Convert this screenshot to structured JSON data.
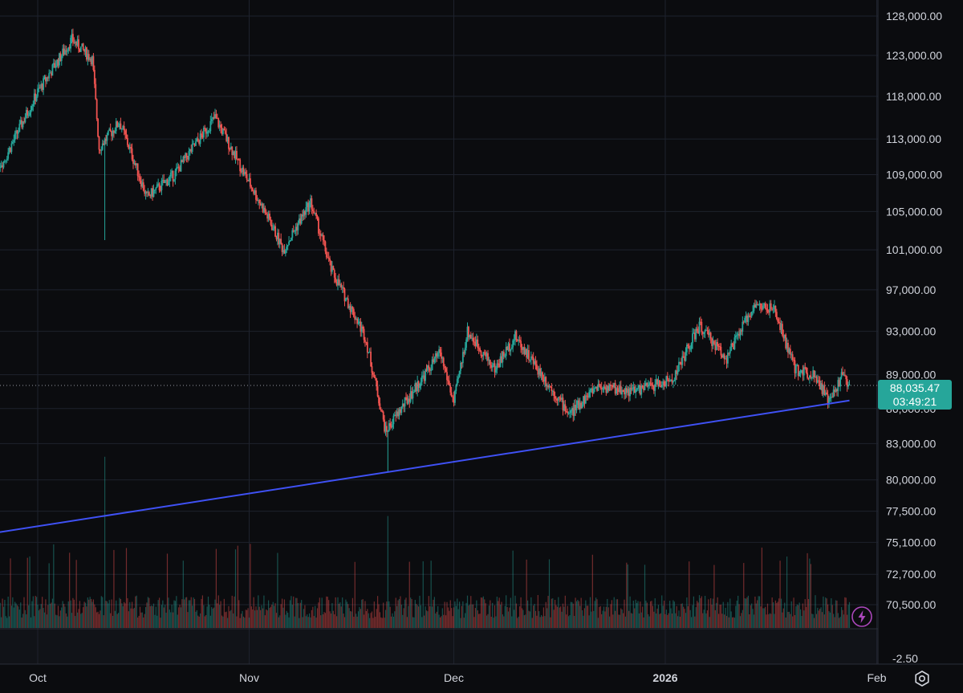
{
  "chart_data": {
    "type": "candlestick",
    "price_axis": {
      "ticks": [
        "128,000.00",
        "123,000.00",
        "118,000.00",
        "113,000.00",
        "109,000.00",
        "105,000.00",
        "101,000.00",
        "97,000.00",
        "93,000.00",
        "89,000.00",
        "86,000.00",
        "83,000.00",
        "80,000.00",
        "77,500.00",
        "75,100.00",
        "72,700.00",
        "70,500.00"
      ],
      "scale": "log"
    },
    "indicator_axis": {
      "ticks": [
        "-2.50"
      ]
    },
    "time_axis": {
      "ticks": [
        {
          "label": "Oct",
          "bold": false
        },
        {
          "label": "Nov",
          "bold": false
        },
        {
          "label": "Dec",
          "bold": false
        },
        {
          "label": "2026",
          "bold": true
        },
        {
          "label": "Feb",
          "bold": false
        }
      ]
    },
    "last_price": "88,035.47",
    "countdown": "03:49:21",
    "trendline": {
      "color": "#3f51f5",
      "points": [
        {
          "date": "2025-09-22",
          "price": 75600
        },
        {
          "date": "2025-11-21",
          "price": 80500
        },
        {
          "date": "2026-01-25",
          "price": 86000
        },
        {
          "date": "2026-01-28",
          "price": 86700
        }
      ]
    },
    "series_anchors": [
      {
        "date": "2025-09-22",
        "price": 109000
      },
      {
        "date": "2025-09-26",
        "price": 110500
      },
      {
        "date": "2025-10-01",
        "price": 118500
      },
      {
        "date": "2025-10-06",
        "price": 125000
      },
      {
        "date": "2025-10-09",
        "price": 122500
      },
      {
        "date": "2025-10-10",
        "price": 112000
      },
      {
        "date": "2025-10-13",
        "price": 115000
      },
      {
        "date": "2025-10-17",
        "price": 106500
      },
      {
        "date": "2025-10-21",
        "price": 109000
      },
      {
        "date": "2025-10-27",
        "price": 115500
      },
      {
        "date": "2025-10-31",
        "price": 109500
      },
      {
        "date": "2025-11-04",
        "price": 104000
      },
      {
        "date": "2025-11-06",
        "price": 101000
      },
      {
        "date": "2025-11-10",
        "price": 106000
      },
      {
        "date": "2025-11-13",
        "price": 99000
      },
      {
        "date": "2025-11-18",
        "price": 92500
      },
      {
        "date": "2025-11-21",
        "price": 84000
      },
      {
        "date": "2025-11-25",
        "price": 87500
      },
      {
        "date": "2025-11-29",
        "price": 91000
      },
      {
        "date": "2025-12-01",
        "price": 86500
      },
      {
        "date": "2025-12-03",
        "price": 93000
      },
      {
        "date": "2025-12-07",
        "price": 89500
      },
      {
        "date": "2025-12-10",
        "price": 92500
      },
      {
        "date": "2025-12-15",
        "price": 88000
      },
      {
        "date": "2025-12-18",
        "price": 85500
      },
      {
        "date": "2025-12-22",
        "price": 88000
      },
      {
        "date": "2025-12-27",
        "price": 87500
      },
      {
        "date": "2026-01-02",
        "price": 88500
      },
      {
        "date": "2026-01-06",
        "price": 93500
      },
      {
        "date": "2026-01-10",
        "price": 90500
      },
      {
        "date": "2026-01-14",
        "price": 95500
      },
      {
        "date": "2026-01-17",
        "price": 95000
      },
      {
        "date": "2026-01-20",
        "price": 89500
      },
      {
        "date": "2026-01-23",
        "price": 89000
      },
      {
        "date": "2026-01-25",
        "price": 86500
      },
      {
        "date": "2026-01-27",
        "price": 89000
      },
      {
        "date": "2026-01-28",
        "price": 88035
      }
    ],
    "colors": {
      "up": "#26a69a",
      "down": "#ef5350",
      "grid": "#1e222d",
      "crosshair_line": "#9598a1"
    },
    "grid": true
  },
  "icons": {
    "settings": "settings-gear-icon",
    "bolt": "lightning-bolt-icon"
  }
}
